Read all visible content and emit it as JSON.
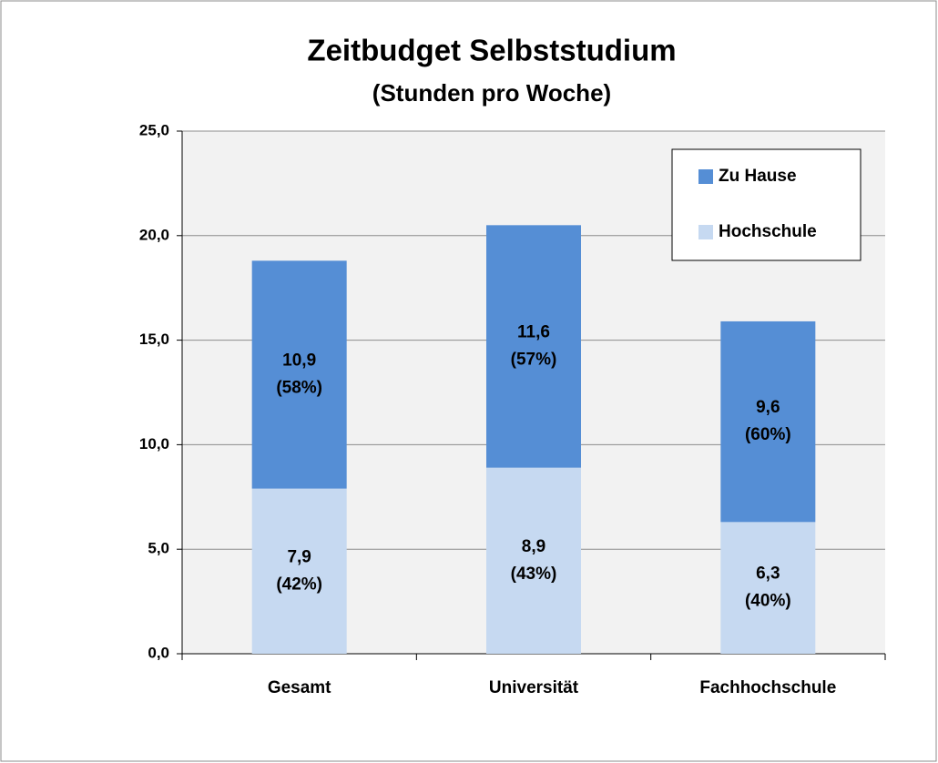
{
  "chart_data": {
    "type": "stacked_bar",
    "title": "Zeitbudget Selbststudium",
    "subtitle": "(Stunden pro Woche)",
    "categories": [
      "Gesamt",
      "Universität",
      "Fachhochschule"
    ],
    "series": [
      {
        "name": "Hochschule",
        "color": "#c6d9f1",
        "values": [
          7.9,
          8.9,
          6.3
        ],
        "value_labels": [
          [
            "7,9",
            "(42%)"
          ],
          [
            "8,9",
            "(43%)"
          ],
          [
            "6,3",
            "(40%)"
          ]
        ]
      },
      {
        "name": "Zu Hause",
        "color": "#558ed5",
        "values": [
          10.9,
          11.6,
          9.6
        ],
        "value_labels": [
          [
            "10,9",
            "(58%)"
          ],
          [
            "11,6",
            "(57%)"
          ],
          [
            "9,6",
            "(60%)"
          ]
        ]
      }
    ],
    "ylim": [
      0,
      25
    ],
    "yticks": [
      {
        "value": 0,
        "label": "0,0"
      },
      {
        "value": 5,
        "label": "5,0"
      },
      {
        "value": 10,
        "label": "10,0"
      },
      {
        "value": 15,
        "label": "15,0"
      },
      {
        "value": 20,
        "label": "20,0"
      },
      {
        "value": 25,
        "label": "25,0"
      }
    ],
    "grid": true,
    "legend": "top-right"
  }
}
